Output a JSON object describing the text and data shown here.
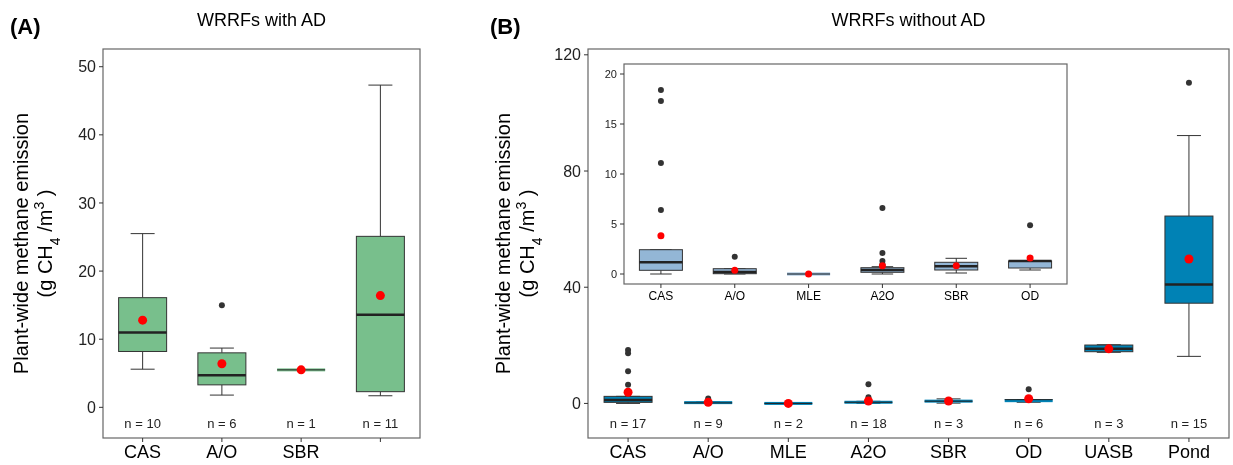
{
  "chart_data": [
    {
      "type": "box",
      "title": "WRRFs with AD",
      "ylabel": "Plant-wide methane emission\n(g CH$_{4}$ /m$^{3}$)",
      "categories": [
        "CAS",
        "A/O",
        "SBR",
        null
      ],
      "color": "#78bf8c",
      "boxes": [
        {
          "low": 5.6,
          "q1": 8.2,
          "median": 11,
          "q3": 16.1,
          "high": 25.5,
          "mean": 12.8
        },
        {
          "low": 1.8,
          "q1": 3.3,
          "median": 4.7,
          "q3": 8.0,
          "high": 8.7,
          "mean": 6.4,
          "outliers": [
            15
          ]
        },
        {
          "low": 5.5,
          "q1": 5.5,
          "median": 5.5,
          "q3": 5.5,
          "high": 5.5,
          "mean": 5.5
        },
        {
          "low": 1.7,
          "q1": 2.3,
          "median": 13.6,
          "q3": 25.1,
          "high": 47.3,
          "mean": 16.4
        }
      ],
      "ylim": [
        -4.5,
        52.6
      ],
      "yticks": [
        0,
        10,
        20,
        30,
        40,
        50
      ],
      "annotations": [
        "(A)",
        "n = 10",
        "n = 6",
        "n = 1",
        "n = 11"
      ]
    },
    {
      "type": "box",
      "title": "WRRFs without AD",
      "ylabel": "Plant-wide methane emission\n(g CH$_{4}$ /m$^{3}$)",
      "categories": [
        "CAS",
        "A/O",
        "MLE",
        "A2O",
        "SBR",
        "OD",
        "UASB",
        "Pond"
      ],
      "color": "#0082b5",
      "boxes": [
        {
          "low": 0,
          "q1": 0.37,
          "median": 1.17,
          "q3": 2.43,
          "high": 2.43,
          "mean": 3.83,
          "outliers": [
            6.4,
            11.1,
            17.3,
            18.4
          ]
        },
        {
          "low": 0,
          "q1": 0.03,
          "median": 0.2,
          "q3": 0.53,
          "high": 0.53,
          "mean": 0.37,
          "outliers": [
            1.73
          ]
        },
        {
          "low": 0,
          "q1": 0,
          "median": 0,
          "q3": 0,
          "high": 0,
          "mean": 0
        },
        {
          "low": 0,
          "q1": 0.17,
          "median": 0.4,
          "q3": 0.63,
          "high": 0.73,
          "mean": 0.83,
          "outliers": [
            2.1,
            6.6
          ]
        },
        {
          "low": 0.1,
          "q1": 0.4,
          "median": 0.77,
          "q3": 1.17,
          "high": 1.57,
          "mean": 0.83
        },
        {
          "low": 0.4,
          "q1": 0.6,
          "median": 1.3,
          "q3": 1.3,
          "high": 1.3,
          "mean": 1.6,
          "outliers": [
            4.87
          ]
        },
        {
          "low": 17.6,
          "q1": 17.8,
          "median": 18.8,
          "q3": 20.1,
          "high": 20.2,
          "mean": 18.8
        },
        {
          "low": 16.2,
          "q1": 34.5,
          "median": 40.9,
          "q3": 64.5,
          "high": 92.2,
          "mean": 49.7,
          "outliers": [
            110.4
          ]
        }
      ],
      "ylim": [
        -11.9,
        122
      ],
      "yticks": [
        0,
        40,
        80,
        120
      ],
      "annotations": [
        "(B)",
        "n = 17",
        "n = 9",
        "n = 2",
        "n = 18",
        "n = 3",
        "n = 6",
        "n = 3",
        "n = 15"
      ]
    },
    {
      "type": "box",
      "categories": [
        "CAS",
        "A/O",
        "MLE",
        "A2O",
        "SBR",
        "OD"
      ],
      "color": "#93b6d6",
      "boxes": [
        {
          "low": 0,
          "q1": 0.37,
          "median": 1.17,
          "q3": 2.43,
          "high": 2.43,
          "mean": 3.83,
          "outliers": [
            6.4,
            11.1,
            17.3,
            18.4
          ]
        },
        {
          "low": 0,
          "q1": 0.03,
          "median": 0.2,
          "q3": 0.53,
          "high": 0.53,
          "mean": 0.37,
          "outliers": [
            1.73
          ]
        },
        {
          "low": 0,
          "q1": 0,
          "median": 0,
          "q3": 0,
          "high": 0,
          "mean": 0
        },
        {
          "low": 0,
          "q1": 0.17,
          "median": 0.4,
          "q3": 0.63,
          "high": 0.73,
          "mean": 0.83,
          "outliers": [
            0.97,
            1.3,
            2.1,
            6.6
          ]
        },
        {
          "low": 0.1,
          "q1": 0.4,
          "median": 0.77,
          "q3": 1.17,
          "high": 1.57,
          "mean": 0.83
        },
        {
          "low": 0.4,
          "q1": 0.6,
          "median": 1.3,
          "q3": 1.3,
          "high": 1.3,
          "mean": 1.6,
          "outliers": [
            4.87
          ]
        }
      ],
      "ylim": [
        -1,
        21
      ],
      "yticks": [
        0,
        5,
        10,
        15,
        20
      ]
    }
  ]
}
